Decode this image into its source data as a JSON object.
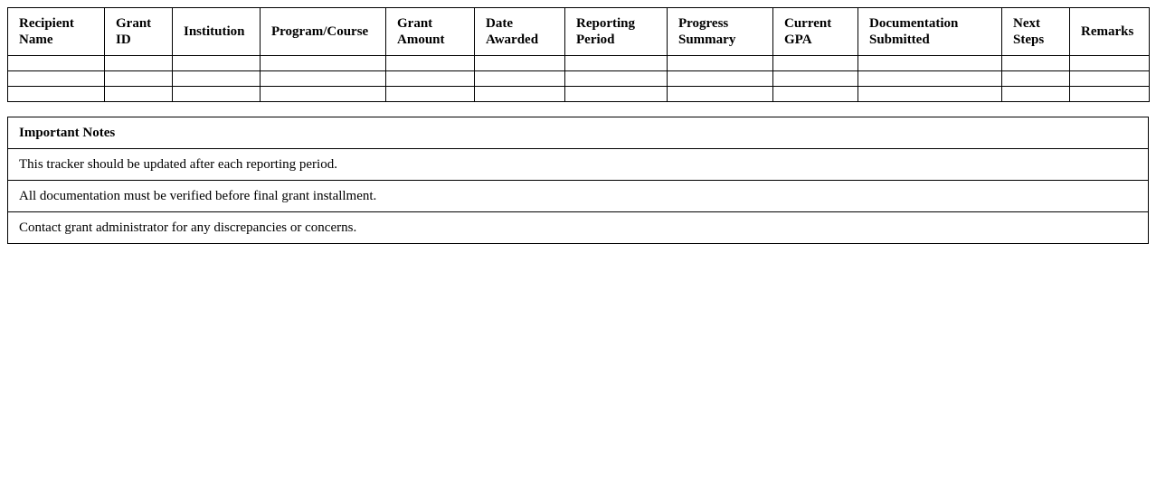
{
  "tracker": {
    "headers": [
      "Recipient Name",
      "Grant ID",
      "Institution",
      "Program/Course",
      "Grant Amount",
      "Date Awarded",
      "Reporting Period",
      "Progress Summary",
      "Current GPA",
      "Documentation Submitted",
      "Next Steps",
      "Remarks"
    ],
    "rows": [
      [
        "",
        "",
        "",
        "",
        "",
        "",
        "",
        "",
        "",
        "",
        "",
        ""
      ],
      [
        "",
        "",
        "",
        "",
        "",
        "",
        "",
        "",
        "",
        "",
        "",
        ""
      ],
      [
        "",
        "",
        "",
        "",
        "",
        "",
        "",
        "",
        "",
        "",
        "",
        ""
      ]
    ]
  },
  "notes": {
    "title": "Important Notes",
    "items": [
      "This tracker should be updated after each reporting period.",
      "All documentation must be verified before final grant installment.",
      "Contact grant administrator for any discrepancies or concerns."
    ]
  }
}
